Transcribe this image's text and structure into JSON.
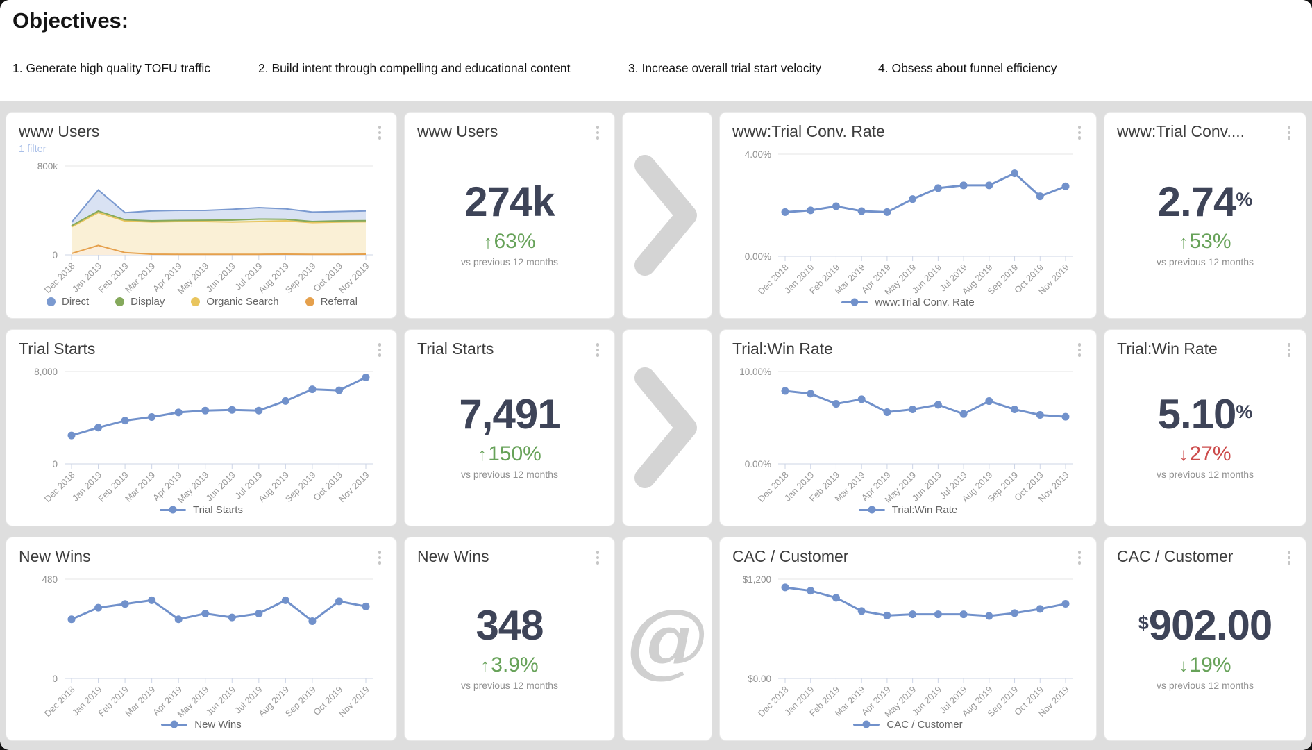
{
  "page": {
    "title": "Objectives:"
  },
  "objectives": [
    {
      "label": "1. Generate high quality TOFU traffic"
    },
    {
      "label": "2. Build intent through compelling and educational content"
    },
    {
      "label": "3. Increase overall trial start velocity"
    },
    {
      "label": "4. Obsess about funnel efficiency"
    }
  ],
  "cards": {
    "www_users_chart": {
      "title": "www Users",
      "filter_label": "1 filter"
    },
    "www_users_number": {
      "title": "www Users",
      "value": "274k",
      "delta": {
        "arrow": "↑",
        "text": "63%",
        "color": "#67a259"
      },
      "caption": "vs previous 12 months"
    },
    "conv_chart": {
      "title": "www:Trial Conv. Rate"
    },
    "conv_number": {
      "title": "www:Trial Conv....",
      "value": "2.74",
      "value_suffix": "%",
      "delta": {
        "arrow": "↑",
        "text": "53%",
        "color": "#67a259"
      },
      "caption": "vs previous 12 months"
    },
    "trial_starts_chart": {
      "title": "Trial Starts"
    },
    "trial_starts_number": {
      "title": "Trial Starts",
      "value": "7,491",
      "delta": {
        "arrow": "↑",
        "text": "150%",
        "color": "#67a259"
      },
      "caption": "vs previous 12 months"
    },
    "win_rate_chart": {
      "title": "Trial:Win Rate"
    },
    "win_rate_number": {
      "title": "Trial:Win Rate",
      "value": "5.10",
      "value_suffix": "%",
      "delta": {
        "arrow": "↓",
        "text": "27%",
        "color": "#cc4b4b"
      },
      "caption": "vs previous 12 months"
    },
    "new_wins_chart": {
      "title": "New Wins"
    },
    "new_wins_number": {
      "title": "New Wins",
      "value": "348",
      "delta": {
        "arrow": "↑",
        "text": "3.9%",
        "color": "#67a259"
      },
      "caption": "vs previous 12 months"
    },
    "cac_chart": {
      "title": "CAC / Customer"
    },
    "cac_number": {
      "title": "CAC / Customer",
      "value_prefix": "$",
      "value": "902.00",
      "delta": {
        "arrow": "↓",
        "text": "19%",
        "color": "#67a259"
      },
      "caption": "vs previous 12 months"
    }
  },
  "connector": {
    "at_glyph": "@",
    "chevron_color": "#d4d4d4"
  },
  "chart_data": [
    {
      "mount": "chart-www-users",
      "type": "area",
      "stacked": true,
      "title": "www Users",
      "categories": [
        "Dec 2018",
        "Jan 2019",
        "Feb 2019",
        "Mar 2019",
        "Apr 2019",
        "May 2019",
        "Jun 2019",
        "Jul 2019",
        "Aug 2019",
        "Sep 2019",
        "Oct 2019",
        "Nov 2019"
      ],
      "ymax": 800,
      "ylim": [
        0,
        800
      ],
      "ytick_labels": {
        "max": "800k",
        "min": "0"
      },
      "units": "thousands of users",
      "series": [
        {
          "name": "Referral",
          "color": "#e5a04c",
          "fill": "#fbeedb",
          "values": [
            12,
            85,
            20,
            6,
            5,
            5,
            5,
            5,
            6,
            5,
            5,
            6
          ]
        },
        {
          "name": "Organic Search",
          "color": "#e9c55e",
          "fill": "#faf0d6",
          "values": [
            240,
            295,
            285,
            290,
            295,
            295,
            290,
            295,
            300,
            285,
            290,
            292
          ]
        },
        {
          "name": "Display",
          "color": "#85a95c",
          "fill": "#e9efdc",
          "values": [
            10,
            14,
            11,
            10,
            10,
            12,
            18,
            22,
            14,
            10,
            11,
            10
          ]
        },
        {
          "name": "Direct",
          "color": "#7b9ad0",
          "fill": "#d9e2f3",
          "values": [
            30,
            190,
            64,
            89,
            90,
            88,
            97,
            103,
            95,
            85,
            84,
            87
          ]
        }
      ]
    },
    {
      "mount": "chart-conv-rate",
      "type": "line",
      "title": "www:Trial Conv. Rate",
      "categories": [
        "Dec 2018",
        "Jan 2019",
        "Feb 2019",
        "Mar 2019",
        "Apr 2019",
        "May 2019",
        "Jun 2019",
        "Jul 2019",
        "Aug 2019",
        "Sep 2019",
        "Oct 2019",
        "Nov 2019"
      ],
      "ymax": 4,
      "ylim": [
        0,
        4
      ],
      "ytick_labels": {
        "max": "4.00%",
        "min": "0.00%"
      },
      "color": "#7191cb",
      "values": [
        1.73,
        1.8,
        1.96,
        1.77,
        1.73,
        2.24,
        2.67,
        2.78,
        2.78,
        3.25,
        2.35,
        2.74
      ]
    },
    {
      "mount": "chart-trial-starts",
      "type": "line",
      "title": "Trial Starts",
      "categories": [
        "Dec 2018",
        "Jan 2019",
        "Feb 2019",
        "Mar 2019",
        "Apr 2019",
        "May 2019",
        "Jun 2019",
        "Jul 2019",
        "Aug 2019",
        "Sep 2019",
        "Oct 2019",
        "Nov 2019"
      ],
      "ymax": 8000,
      "ylim": [
        0,
        8000
      ],
      "ytick_labels": {
        "max": "8,000",
        "min": "0"
      },
      "color": "#7191cb",
      "values": [
        2460,
        3140,
        3750,
        4060,
        4460,
        4620,
        4680,
        4620,
        5450,
        6460,
        6370,
        7491
      ]
    },
    {
      "mount": "chart-win-rate",
      "type": "line",
      "title": "Trial:Win Rate",
      "categories": [
        "Dec 2018",
        "Jan 2019",
        "Feb 2019",
        "Mar 2019",
        "Apr 2019",
        "May 2019",
        "Jun 2019",
        "Jul 2019",
        "Aug 2019",
        "Sep 2019",
        "Oct 2019",
        "Nov 2019"
      ],
      "ymax": 10,
      "ylim": [
        0,
        10
      ],
      "ytick_labels": {
        "max": "10.00%",
        "min": "0.00%"
      },
      "color": "#7191cb",
      "values": [
        7.9,
        7.6,
        6.5,
        7.0,
        5.6,
        5.9,
        6.4,
        5.4,
        6.8,
        5.9,
        5.3,
        5.1
      ]
    },
    {
      "mount": "chart-cac",
      "type": "line",
      "title": "CAC / Customer",
      "categories": [
        "Dec 2018",
        "Jan 2019",
        "Feb 2019",
        "Mar 2019",
        "Apr 2019",
        "May 2019",
        "Jun 2019",
        "Jul 2019",
        "Aug 2019",
        "Sep 2019",
        "Oct 2019",
        "Nov 2019"
      ],
      "ymax": 1200,
      "ylim": [
        0,
        1200
      ],
      "ytick_labels": {
        "max": "$1,200",
        "min": "$0.00"
      },
      "color": "#7191cb",
      "values": [
        1100,
        1060,
        975,
        815,
        760,
        775,
        775,
        775,
        755,
        790,
        840,
        902
      ]
    }
  ]
}
